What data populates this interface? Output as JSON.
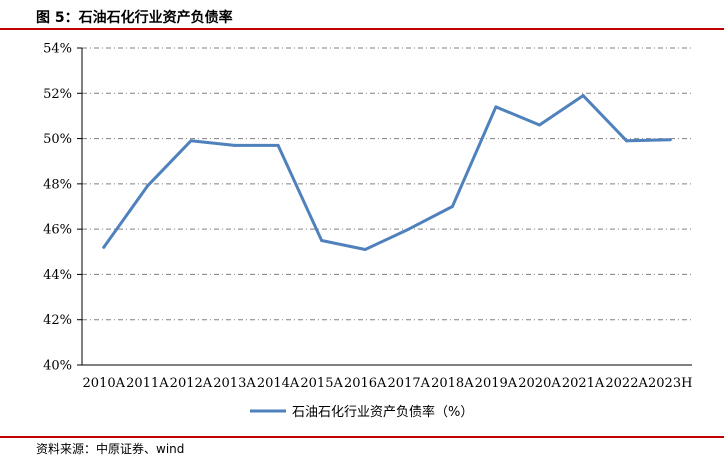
{
  "header": {
    "title": "图 5：石油石化行业资产负债率"
  },
  "footer": {
    "source": "资料来源：中原证券、wind"
  },
  "colors": {
    "accent": "#c00000",
    "series": "#4f81bd",
    "grid": "#808080"
  },
  "chart_data": {
    "type": "line",
    "title": "",
    "xlabel": "",
    "ylabel": "",
    "ylim": [
      40,
      54
    ],
    "yticks": [
      40,
      42,
      44,
      46,
      48,
      50,
      52,
      54
    ],
    "ytick_labels": [
      "40%",
      "42%",
      "44%",
      "46%",
      "48%",
      "50%",
      "52%",
      "54%"
    ],
    "grid": true,
    "legend_position": "bottom-center",
    "categories": [
      "2010A",
      "2011A",
      "2012A",
      "2013A",
      "2014A",
      "2015A",
      "2016A",
      "2017A",
      "2018A",
      "2019A",
      "2020A",
      "2021A",
      "2022A",
      "2023H"
    ],
    "series": [
      {
        "name": "石油石化行业资产负债率（%）",
        "values": [
          45.2,
          47.9,
          49.9,
          49.7,
          49.7,
          45.5,
          45.1,
          46.0,
          47.0,
          51.4,
          50.6,
          51.9,
          49.9,
          49.95
        ]
      }
    ]
  }
}
